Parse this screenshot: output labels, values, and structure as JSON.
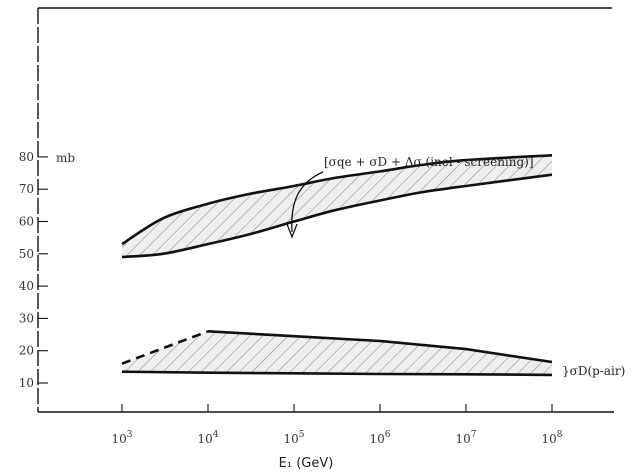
{
  "chart_data": {
    "type": "area",
    "title": "",
    "xlabel": "E₁ (GeV)",
    "ylabel": "",
    "y_unit": "mb",
    "x_scale": "log",
    "xlim": [
      1000,
      100000000
    ],
    "ylim": [
      0,
      90
    ],
    "grid": false,
    "x_ticks": [
      {
        "value": 1000,
        "base": "10",
        "exp": "3"
      },
      {
        "value": 10000,
        "base": "10",
        "exp": "4"
      },
      {
        "value": 100000,
        "base": "10",
        "exp": "5"
      },
      {
        "value": 1000000,
        "base": "10",
        "exp": "6"
      },
      {
        "value": 10000000,
        "base": "10",
        "exp": "7"
      },
      {
        "value": 100000000,
        "base": "10",
        "exp": "8"
      }
    ],
    "y_ticks": [
      {
        "value": 10,
        "label": "10"
      },
      {
        "value": 20,
        "label": "20"
      },
      {
        "value": 30,
        "label": "30"
      },
      {
        "value": 40,
        "label": "40"
      },
      {
        "value": 50,
        "label": "50"
      },
      {
        "value": 60,
        "label": "60"
      },
      {
        "value": 70,
        "label": "70"
      },
      {
        "value": 80,
        "label": "80"
      }
    ],
    "series": [
      {
        "name": "[σqe + σD + Δσ (inel - screening)]",
        "lower": {
          "x": [
            1000,
            3000,
            10000,
            30000,
            100000,
            300000,
            1000000,
            3000000,
            10000000,
            100000000
          ],
          "y": [
            49,
            50,
            53,
            56,
            60,
            63.5,
            66.5,
            69,
            71,
            74.5
          ]
        },
        "upper": {
          "x": [
            1000,
            3000,
            10000,
            30000,
            100000,
            300000,
            1000000,
            3000000,
            10000000,
            100000000
          ],
          "y": [
            53,
            61,
            65.5,
            68.5,
            71,
            73.5,
            75.5,
            77.5,
            79,
            80.5
          ]
        }
      },
      {
        "name": "σD(p-air)",
        "lower": {
          "x": [
            1000,
            10000,
            100000,
            1000000,
            10000000,
            100000000
          ],
          "y": [
            13.5,
            13.2,
            13,
            12.8,
            12.7,
            12.5
          ]
        },
        "upper": {
          "x": [
            1000,
            10000,
            100000,
            1000000,
            10000000,
            100000000
          ],
          "y": [
            16,
            26,
            24.5,
            23,
            20.5,
            16.5
          ]
        },
        "upper_dashed_until": 10000
      }
    ],
    "annotations": [
      {
        "text": "[σqe + σD + Δσ (inel - screening)]",
        "target": "series-0"
      },
      {
        "text": "}σD(p-air)",
        "target": "series-1"
      }
    ]
  }
}
